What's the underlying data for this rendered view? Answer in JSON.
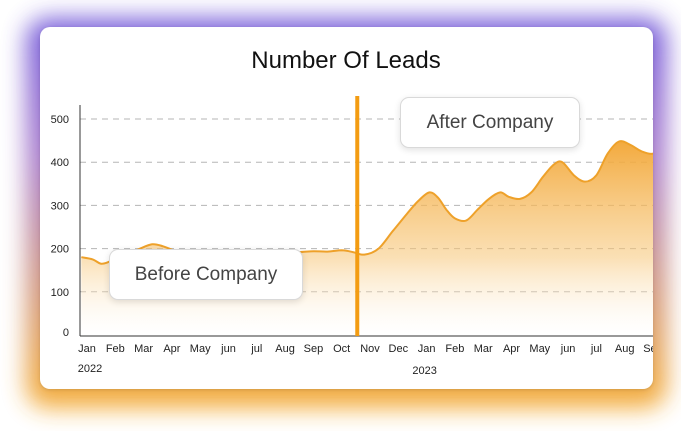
{
  "chart_data": {
    "type": "area",
    "title": "Number Of Leads",
    "xlabel": "",
    "ylabel": "",
    "ylim": [
      0,
      500
    ],
    "yticks": [
      0,
      100,
      200,
      300,
      400,
      500
    ],
    "grid": "horizontal-dashed",
    "x_tick_labels": [
      "Jan",
      "Feb",
      "Mar",
      "Apr",
      "May",
      "jun",
      "jul",
      "Aug",
      "Sep",
      "Oct",
      "Nov",
      "Dec",
      "Jan",
      "Feb",
      "Mar",
      "Apr",
      "May",
      "jun",
      "jul",
      "Aug",
      "Sep"
    ],
    "year_labels": [
      {
        "label": "2022",
        "tick_index": 0
      },
      {
        "label": "2023",
        "tick_index": 12
      }
    ],
    "x": [
      -0.2,
      0.2,
      0.5,
      0.8,
      1.3,
      1.8,
      2.3,
      2.7,
      3.2,
      3.7,
      4.3,
      4.9,
      5.5,
      6.0,
      6.5,
      7.0,
      7.5,
      8.0,
      8.5,
      9.0,
      9.4,
      9.8,
      10.3,
      10.8,
      11.3,
      11.7,
      12.1,
      12.4,
      12.7,
      13.0,
      13.4,
      13.8,
      14.2,
      14.6,
      14.9,
      15.3,
      15.7,
      16.1,
      16.5,
      16.8,
      17.2,
      17.6,
      18.0,
      18.4,
      18.8,
      19.2,
      19.6,
      20.0,
      20.2
    ],
    "series": [
      {
        "values": [
          180,
          175,
          165,
          170,
          185,
          198,
          210,
          205,
          193,
          188,
          187,
          189,
          191,
          193,
          192,
          193,
          192,
          194,
          193,
          196,
          192,
          186,
          200,
          240,
          280,
          310,
          330,
          318,
          290,
          270,
          265,
          290,
          315,
          330,
          320,
          315,
          330,
          365,
          395,
          400,
          370,
          355,
          370,
          420,
          448,
          440,
          425,
          420,
          440
        ]
      }
    ],
    "annotations": [
      {
        "text": "Before Company",
        "x_region": "2022"
      },
      {
        "text": "After Company",
        "x_region": "2023"
      }
    ],
    "divider_x": 9.55,
    "colors": {
      "area_top": "#f2a533",
      "area_bottom": "#ffffff",
      "line": "#eea12a",
      "divider": "#f39c12",
      "grid": "#b5b5b5",
      "glow_purple": "#6a4fd8",
      "glow_orange": "#f5a623"
    }
  }
}
